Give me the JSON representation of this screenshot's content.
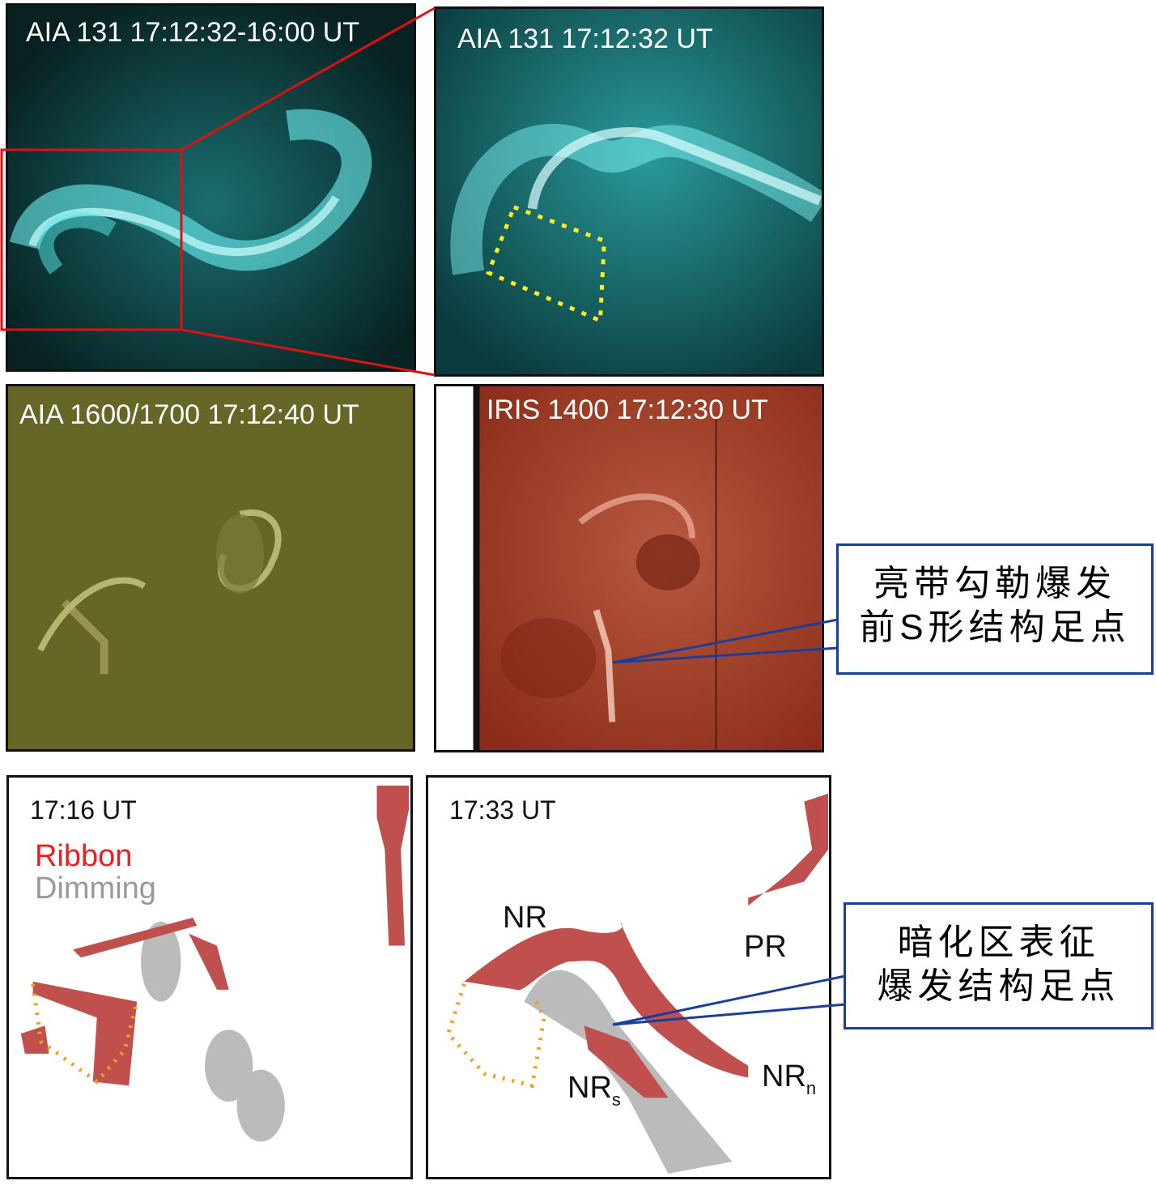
{
  "panels": {
    "aia131_diff": {
      "label": "AIA 131 17:12:32-16:00 UT"
    },
    "aia131": {
      "label": "AIA 131 17:12:32 UT"
    },
    "aia1600": {
      "label": "AIA 1600/1700 17:12:40 UT"
    },
    "iris1400": {
      "label": "IRIS 1400 17:12:30 UT"
    },
    "map_1716": {
      "time": "17:16 UT",
      "legend_ribbon": "Ribbon",
      "legend_dimming": "Dimming"
    },
    "map_1733": {
      "time": "17:33 UT",
      "label_nr": "NR",
      "label_pr": "PR",
      "label_nrs_main": "NR",
      "label_nrs_sub": "s",
      "label_nrn_main": "NR",
      "label_nrn_sub": "n"
    }
  },
  "callouts": {
    "sigmoid_footpoint": {
      "line1": "亮带勾勒爆发",
      "line2": "前S形结构足点"
    },
    "dimming_footpoint": {
      "line1": "暗化区表征",
      "line2": "爆发结构足点"
    }
  },
  "colors": {
    "ribbon": "#c0504d",
    "dimming": "#bbbbbb",
    "aia131": "#2ec4c4",
    "aia1600": "#7a7a2a",
    "iris": "#a8402a",
    "zoom_box": "#e01010",
    "callout": "#1a3f9a",
    "dotted_outline": "#f0a020"
  }
}
